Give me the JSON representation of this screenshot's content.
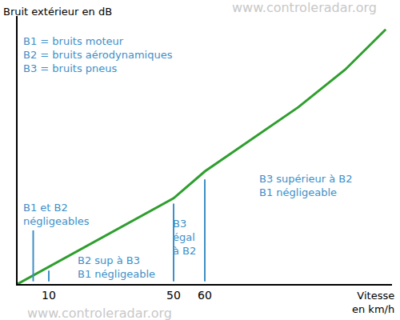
{
  "chart_data": {
    "type": "line",
    "y_label": "Bruit extérieur en dB",
    "x_label": [
      "Vitesse",
      "en km/h"
    ],
    "watermark": "www.controleradar.org",
    "x": [
      0,
      45,
      50,
      60,
      75,
      90,
      105,
      118
    ],
    "values": [
      0,
      29,
      32,
      42,
      54,
      66,
      80,
      95
    ],
    "color": "#2e9e2e",
    "xlim": [
      0,
      120
    ],
    "xticks": [
      10,
      50,
      60
    ],
    "ylim": [
      0,
      100
    ],
    "yticks": [],
    "tick_labels": "x",
    "grid": false,
    "vlines": {
      "color": "#3d8fc7",
      "lines": [
        {
          "x": 5,
          "y0": 1,
          "y1": 20
        },
        {
          "x": 10,
          "y0": 1,
          "y1": 5
        },
        {
          "x": 50,
          "y0": 1,
          "y1": 30
        },
        {
          "x": 60,
          "y0": 1,
          "y1": 39
        }
      ]
    },
    "annotations": {
      "color": "#3d8fc7",
      "items": [
        {
          "text": [
            "B1 = bruits moteur",
            "B2 = bruits aérodynamiques",
            "B3 = bruits pneus"
          ]
        },
        {
          "text": [
            "B1 et B2",
            "négligeables"
          ]
        },
        {
          "text": [
            "B2 sup à B3",
            "B1 négligeable"
          ]
        },
        {
          "text": [
            "B3",
            "égal",
            "à B2"
          ]
        },
        {
          "text": [
            "B3 supérieur à B2",
            "B1 négligeable"
          ]
        }
      ]
    }
  }
}
